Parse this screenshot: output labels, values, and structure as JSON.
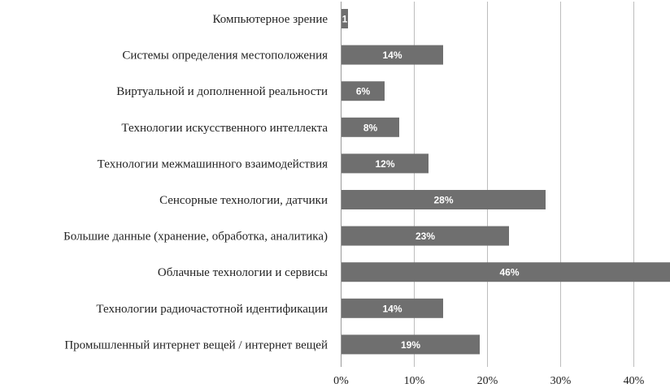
{
  "chart_data": {
    "type": "bar",
    "orientation": "horizontal",
    "categories": [
      "Компьютерное зрение",
      "Системы определения местоположения",
      "Виртуальной и дополненной реальности",
      "Технологии искусственного интеллекта",
      "Технологии межмашинного взаимодействия",
      "Сенсорные технологии, датчики",
      "Большие данные (хранение, обработка, аналитика)",
      "Облачные технологии и сервисы",
      "Технологии радиочастотной идентификации",
      "Промышленный интернет вещей / интернет вещей"
    ],
    "values": [
      1,
      14,
      6,
      8,
      12,
      28,
      23,
      46,
      14,
      19
    ],
    "data_labels": [
      "1",
      "14%",
      "6%",
      "8%",
      "12%",
      "28%",
      "23%",
      "46%",
      "14%",
      "19%"
    ],
    "xlim": [
      0,
      45
    ],
    "x_ticks": [
      "0%",
      "10%",
      "20%",
      "30%",
      "40%"
    ],
    "grid": true,
    "bar_color": "#6f6f6f",
    "label_color": "#ffffff"
  }
}
